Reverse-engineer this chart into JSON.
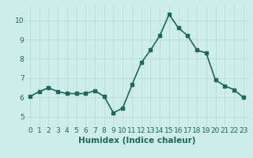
{
  "x": [
    0,
    1,
    2,
    3,
    4,
    5,
    6,
    7,
    8,
    9,
    10,
    11,
    12,
    13,
    14,
    15,
    16,
    17,
    18,
    19,
    20,
    21,
    22,
    23
  ],
  "y": [
    6.05,
    6.3,
    6.5,
    6.3,
    6.2,
    6.2,
    6.2,
    6.35,
    6.05,
    5.2,
    5.45,
    6.65,
    7.8,
    8.45,
    9.2,
    10.3,
    9.6,
    9.2,
    8.45,
    8.3,
    6.9,
    6.6,
    6.4,
    6.0
  ],
  "line_color": "#1a6b5a",
  "bg_color": "#ceecea",
  "grid_color": "#b8d8d4",
  "xlabel": "Humidex (Indice chaleur)",
  "xlabel_color": "#1a6b5a",
  "tick_color": "#1a6b5a",
  "ylim": [
    4.5,
    10.8
  ],
  "xlim": [
    -0.5,
    23.5
  ],
  "yticks": [
    5,
    6,
    7,
    8,
    9,
    10
  ],
  "xticks": [
    0,
    1,
    2,
    3,
    4,
    5,
    6,
    7,
    8,
    9,
    10,
    11,
    12,
    13,
    14,
    15,
    16,
    17,
    18,
    19,
    20,
    21,
    22,
    23
  ],
  "marker_size": 2.5,
  "line_width": 1.2,
  "xlabel_fontsize": 7.5,
  "tick_fontsize": 6.5
}
